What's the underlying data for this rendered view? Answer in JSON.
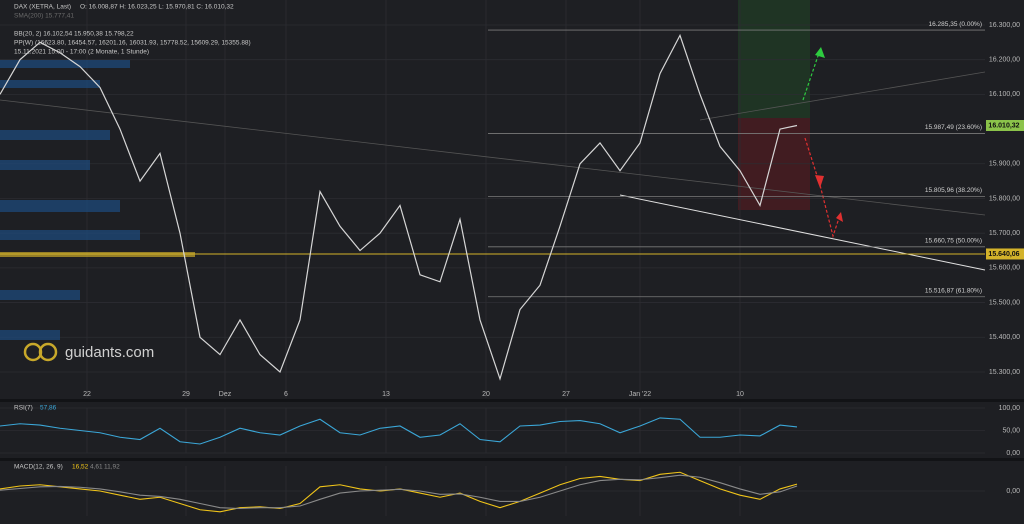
{
  "chart_data": [
    {
      "type": "line",
      "series": [
        {
          "name": "DAX (XETRA, Last)",
          "color": "#d6d6d6",
          "values": [
            16100,
            16200,
            16250,
            16220,
            16180,
            16120,
            16000,
            15850,
            15930,
            15700,
            15400,
            15350,
            15450,
            15350,
            15300,
            15450,
            15820,
            15720,
            15650,
            15700,
            15780,
            15580,
            15560,
            15740,
            15450,
            15280,
            15480,
            15550,
            15720,
            15900,
            15960,
            15880,
            15960,
            16160,
            16270,
            16100,
            15950,
            15880,
            15780,
            16000,
            16010.32
          ]
        }
      ],
      "x": [
        0,
        1,
        2,
        3,
        4,
        5,
        6,
        7,
        8,
        9,
        10,
        11,
        12,
        13,
        14,
        15,
        16,
        17,
        18,
        19,
        20,
        21,
        22,
        23,
        24,
        25,
        26,
        27,
        28,
        29,
        30,
        31,
        32,
        33,
        34,
        35,
        36,
        37,
        38,
        39,
        39.85
      ],
      "ohlc_label": "O: 16.008,87  H: 16.023,25  L: 15.970,81  C: 16.010,32",
      "indicator_labels": [
        "SMA(200)  15.777,41",
        "BB(20, 2)  16.102,54  15.950,38  15.798,22",
        "PP(W)  (16623.80, 16454.57, 16201.16, 16031.93, 15778.52, 15609.29, 15355.88)",
        "15.11.2021 15:00 - 17:00  (2 Monate, 1 Stunde)"
      ],
      "watermark": "guidants.com",
      "xlim": [
        0,
        49.25
      ],
      "xticks": [
        {
          "value": 4.35,
          "label": "22"
        },
        {
          "value": 9.3,
          "label": "29"
        },
        {
          "value": 11.25,
          "label": "Dez"
        },
        {
          "value": 14.3,
          "label": "6"
        },
        {
          "value": 19.3,
          "label": "13"
        },
        {
          "value": 24.3,
          "label": "20"
        },
        {
          "value": 28.3,
          "label": "27"
        },
        {
          "value": 32,
          "label": "Jan '22"
        },
        {
          "value": 37,
          "label": "10"
        }
      ],
      "ylim": [
        15225,
        16372
      ],
      "yticks": [
        {
          "value": 16300,
          "label": "16.300,00"
        },
        {
          "value": 16200,
          "label": "16.200,00"
        },
        {
          "value": 16100,
          "label": "16.100,00"
        },
        {
          "value": 15900,
          "label": "15.900,00"
        },
        {
          "value": 15800,
          "label": "15.800,00"
        },
        {
          "value": 15700,
          "label": "15.700,00"
        },
        {
          "value": 15600,
          "label": "15.600,00"
        },
        {
          "value": 15500,
          "label": "15.500,00"
        },
        {
          "value": 15400,
          "label": "15.400,00"
        },
        {
          "value": 15300,
          "label": "15.300,00"
        }
      ],
      "fib_levels": [
        {
          "value": 16285.35,
          "label": "16.285,35 (0.00%)"
        },
        {
          "value": 15987.49,
          "label": "15.987,49 (23.60%)"
        },
        {
          "value": 15805.96,
          "label": "15.805,96 (38.20%)"
        },
        {
          "value": 15660.75,
          "label": "15.660,75 (50.00%)"
        },
        {
          "value": 15516.87,
          "label": "15.516,87 (61.80%)"
        }
      ],
      "price_tags": [
        {
          "value": 16010.32,
          "label": "16.010,32",
          "color": "#8bc34a"
        },
        {
          "value": 15640.06,
          "label": "15.640,06",
          "color": "#d4b32a"
        }
      ],
      "grid": true
    },
    {
      "type": "line",
      "title": "RSI(7)",
      "value_label": "57,86",
      "series": [
        {
          "color": "#3ba7d8",
          "values": [
            60,
            65,
            62,
            55,
            50,
            45,
            35,
            30,
            55,
            25,
            20,
            35,
            55,
            45,
            40,
            60,
            75,
            45,
            40,
            55,
            60,
            35,
            40,
            65,
            30,
            25,
            60,
            62,
            70,
            72,
            65,
            45,
            60,
            78,
            75,
            35,
            35,
            40,
            38,
            62,
            57.86
          ]
        }
      ],
      "x": [
        0,
        1,
        2,
        3,
        4,
        5,
        6,
        7,
        8,
        9,
        10,
        11,
        12,
        13,
        14,
        15,
        16,
        17,
        18,
        19,
        20,
        21,
        22,
        23,
        24,
        25,
        26,
        27,
        28,
        29,
        30,
        31,
        32,
        33,
        34,
        35,
        36,
        37,
        38,
        39,
        39.85
      ],
      "xlim": [
        0,
        49.25
      ],
      "ylim": [
        0,
        100
      ],
      "yticks": [
        {
          "value": 100,
          "label": "100,00"
        },
        {
          "value": 50,
          "label": "50,00"
        },
        {
          "value": 0,
          "label": "0,00"
        }
      ]
    },
    {
      "type": "line",
      "title": "MACD(12, 26, 9)",
      "value_labels": [
        "16,52",
        "4,61",
        "11,92"
      ],
      "series": [
        {
          "color": "#f0c419",
          "values": [
            5,
            12,
            15,
            10,
            5,
            0,
            -10,
            -20,
            -15,
            -30,
            -45,
            -50,
            -40,
            -38,
            -42,
            -30,
            10,
            15,
            5,
            0,
            5,
            -5,
            -15,
            -5,
            -25,
            -40,
            -25,
            -5,
            15,
            30,
            35,
            28,
            25,
            40,
            45,
            25,
            5,
            -10,
            -20,
            5,
            16.52
          ]
        },
        {
          "color": "#8a8a8a",
          "values": [
            2,
            6,
            10,
            11,
            9,
            5,
            -2,
            -10,
            -13,
            -20,
            -30,
            -40,
            -42,
            -40,
            -40,
            -36,
            -20,
            -5,
            0,
            2,
            4,
            0,
            -8,
            -7,
            -15,
            -25,
            -25,
            -15,
            0,
            15,
            25,
            28,
            27,
            32,
            38,
            33,
            20,
            5,
            -8,
            -2,
            11.92
          ]
        }
      ],
      "x": [
        0,
        1,
        2,
        3,
        4,
        5,
        6,
        7,
        8,
        9,
        10,
        11,
        12,
        13,
        14,
        15,
        16,
        17,
        18,
        19,
        20,
        21,
        22,
        23,
        24,
        25,
        26,
        27,
        28,
        29,
        30,
        31,
        32,
        33,
        34,
        35,
        36,
        37,
        38,
        39,
        39.85
      ],
      "xlim": [
        0,
        49.25
      ],
      "ylim": [
        -60,
        60
      ],
      "yticks": [
        {
          "value": 0,
          "label": "0,00"
        }
      ]
    }
  ]
}
